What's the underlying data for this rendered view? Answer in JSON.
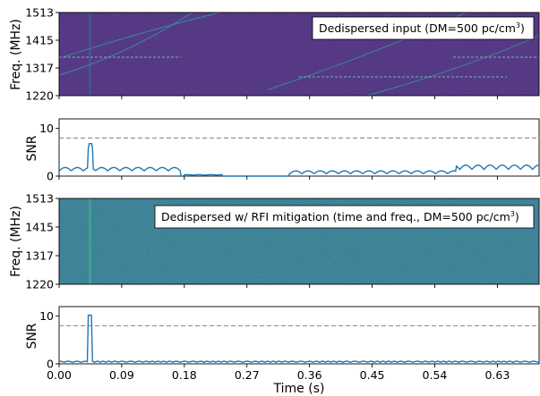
{
  "chart_data": [
    {
      "type": "heatmap",
      "annotation": "Dedispersed input (DM=500 pc/cm",
      "annotation_sup": "3",
      "annotation_close": ")",
      "ylabel": "Freq. (MHz)",
      "yticks": [
        "1513",
        "1415",
        "1317",
        "1220"
      ],
      "ylim": [
        1220,
        1513
      ],
      "xlim": [
        0,
        0.69
      ],
      "colormap": "#482a78",
      "pulse_time": 0.044
    },
    {
      "type": "line",
      "ylabel": "SNR",
      "yticks": [
        "10",
        "0"
      ],
      "ylim": [
        0,
        12
      ],
      "threshold": 8,
      "peak": {
        "time": 0.045,
        "snr": 6.8
      },
      "series_color": "#1f77b4",
      "segments": [
        {
          "start": 0.0,
          "end": 0.175,
          "level": 1.1,
          "ripple": 0.7
        },
        {
          "start": 0.18,
          "end": 0.235,
          "level": 0.2,
          "ripple": 0.1
        },
        {
          "start": 0.33,
          "end": 0.57,
          "level": 0.5,
          "ripple": 0.6
        },
        {
          "start": 0.57,
          "end": 0.69,
          "level": 1.4,
          "ripple": 0.9
        }
      ]
    },
    {
      "type": "heatmap",
      "annotation": "Dedispersed w/ RFI mitigation (time and freq., DM=500 pc/cm",
      "annotation_sup": "3",
      "annotation_close": ")",
      "ylabel": "Freq. (MHz)",
      "yticks": [
        "1513",
        "1415",
        "1317",
        "1220"
      ],
      "ylim": [
        1220,
        1513
      ],
      "xlim": [
        0,
        0.69
      ],
      "colormap": "#2e6e8a",
      "pulse_time": 0.044
    },
    {
      "type": "line",
      "ylabel": "SNR",
      "yticks": [
        "10",
        "0"
      ],
      "ylim": [
        0,
        12
      ],
      "threshold": 8,
      "peak": {
        "time": 0.045,
        "snr": 10.2
      },
      "baseline": 0.3,
      "series_color": "#1f77b4",
      "xlabel": "Time (s)",
      "xticks": [
        "0.00",
        "0.09",
        "0.18",
        "0.27",
        "0.36",
        "0.45",
        "0.54",
        "0.63"
      ],
      "xtick_values": [
        0,
        0.09,
        0.18,
        0.27,
        0.36,
        0.45,
        0.54,
        0.63
      ]
    }
  ]
}
